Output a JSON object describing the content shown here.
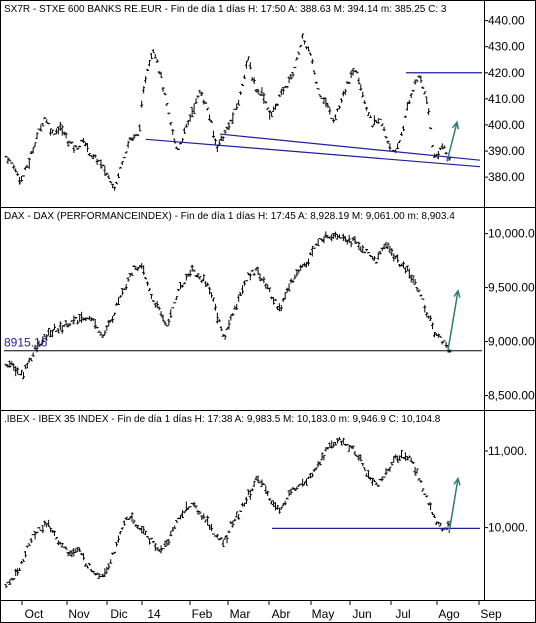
{
  "x_axis": {
    "labels": [
      "Oct",
      "Nov",
      "Dic",
      "14",
      "Feb",
      "Mar",
      "Abr",
      "May",
      "Jun",
      "Jul",
      "Ago",
      "Sep"
    ]
  },
  "chart_data": [
    {
      "type": "ohlc-bar",
      "title": "SX7R - STXE 600 BANKS RE.EUR - Fin de día 1 días  H: 17:50  A: 388.63  M: 394.14  m: 385.25  C: 3",
      "yticks": [
        "380.00",
        "390.00",
        "400.00",
        "410.00",
        "420.00",
        "430.00",
        "440.00"
      ],
      "ylim": [
        372,
        441
      ],
      "x_months": [
        "Oct",
        "Nov",
        "Dic",
        "14",
        "Feb",
        "Mar",
        "Abr",
        "May",
        "Jun",
        "Jul",
        "Ago",
        "Sep"
      ],
      "closes": [
        388,
        384,
        379,
        386,
        396,
        403,
        397,
        399,
        394,
        391,
        394,
        388,
        386,
        381,
        376,
        387,
        395,
        396,
        420,
        430,
        417,
        402,
        390,
        398,
        406,
        413,
        405,
        392,
        396,
        402,
        410,
        426,
        414,
        412,
        403,
        410,
        415,
        421,
        433,
        428,
        414,
        409,
        402,
        408,
        417,
        422,
        410,
        400,
        402,
        394,
        388,
        399,
        412,
        419,
        410,
        387,
        392,
        386
      ],
      "annotations": [
        "resistance-420",
        "support-lines",
        "up-arrow"
      ],
      "colors": {
        "bars": "#000000",
        "lines": "#1f1f9c",
        "arrow": "#2e7d74"
      }
    },
    {
      "type": "ohlc-bar",
      "title": "DAX - DAX (PERFORMANCEINDEX) - Fin de día 1 días  H: 17:45  A: 8,928.19  M: 9,061.00  m: 8,903.4",
      "yticks": [
        "8,500.00",
        "9,000.00",
        "9,500.00",
        "10,000.00"
      ],
      "ylim": [
        8440,
        10080
      ],
      "level_label": "8915.16",
      "level_value": 8915.16,
      "closes": [
        8800,
        8760,
        8680,
        8850,
        8950,
        9050,
        9100,
        9140,
        9180,
        9200,
        9230,
        9180,
        9050,
        9180,
        9400,
        9560,
        9700,
        9660,
        9420,
        9280,
        9150,
        9400,
        9550,
        9680,
        9590,
        9540,
        9300,
        9020,
        9250,
        9430,
        9600,
        9680,
        9550,
        9410,
        9300,
        9500,
        9640,
        9720,
        9840,
        9950,
        9980,
        10000,
        9960,
        9930,
        9880,
        9790,
        9750,
        9920,
        9800,
        9700,
        9620,
        9510,
        9300,
        9100,
        9020,
        8930
      ],
      "colors": {
        "bars": "#000000",
        "lines": "#000000",
        "arrow": "#2e7d74",
        "level": "#1f1f9c"
      }
    },
    {
      "type": "ohlc-bar",
      "title": ".IBEX - IBEX 35 INDEX - Fin de día 1 días  H: 17:38  A: 9,983.5  M: 10,183.0  m: 9,946.9  C: 10,104.8",
      "yticks": [
        "10,000.",
        "11,000."
      ],
      "ylim": [
        9160,
        11300
      ],
      "closes": [
        9230,
        9350,
        9550,
        9820,
        9980,
        10030,
        9930,
        9750,
        9660,
        9710,
        9520,
        9420,
        9380,
        9580,
        9870,
        10150,
        10050,
        9950,
        9840,
        9700,
        9800,
        10050,
        10200,
        10320,
        10180,
        10080,
        9870,
        9800,
        10050,
        10200,
        10410,
        10620,
        10560,
        10300,
        10240,
        10400,
        10550,
        10620,
        10730,
        10880,
        11050,
        11130,
        11100,
        11020,
        10880,
        10650,
        10550,
        10700,
        10860,
        10950,
        10920,
        10700,
        10400,
        10150,
        9980,
        10050
      ],
      "colors": {
        "bars": "#000000",
        "lines": "#1f1f9c",
        "arrow": "#2e7d74"
      }
    }
  ]
}
